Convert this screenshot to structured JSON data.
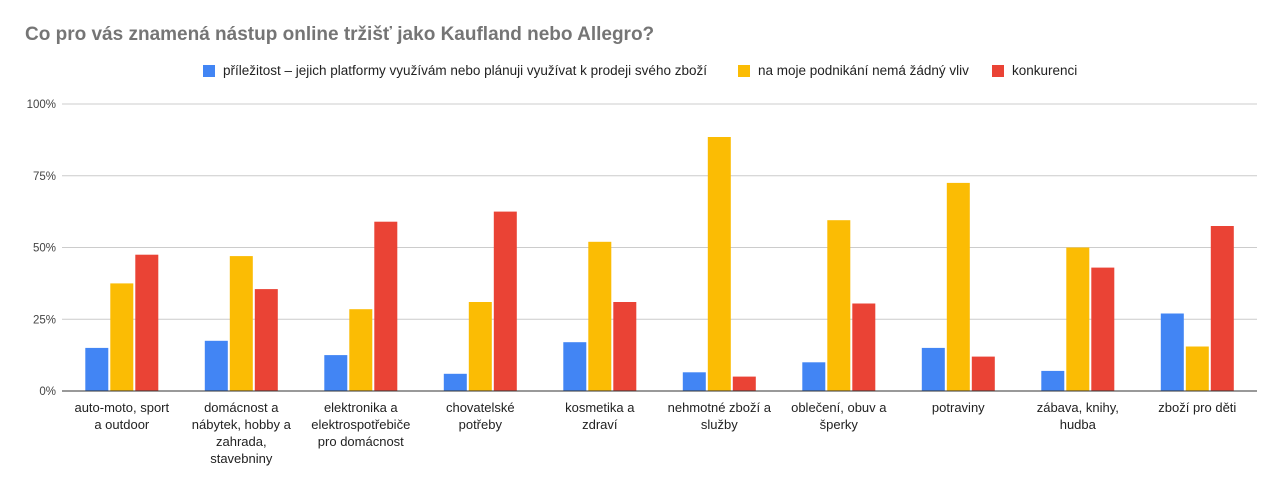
{
  "chart_data": {
    "type": "bar",
    "title": "Co pro vás znamená nástup online tržišť jako Kaufland nebo Allegro?",
    "xlabel": "",
    "ylabel": "",
    "ylim": [
      0,
      100
    ],
    "yticks": [
      "0%",
      "25%",
      "50%",
      "75%",
      "100%"
    ],
    "ytick_values": [
      0,
      25,
      50,
      75,
      100
    ],
    "grid": true,
    "legend_position": "top",
    "categories": [
      [
        "auto-moto, sport",
        "a outdoor"
      ],
      [
        "domácnost a",
        "nábytek, hobby a",
        "zahrada,",
        "stavebniny"
      ],
      [
        "elektronika a",
        "elektrospotřebiče",
        "pro domácnost"
      ],
      [
        "chovatelské",
        "potřeby"
      ],
      [
        "kosmetika a",
        "zdraví"
      ],
      [
        "nehmotné zboží a",
        "služby"
      ],
      [
        "oblečení, obuv a",
        "šperky"
      ],
      [
        "potraviny"
      ],
      [
        "zábava, knihy,",
        "hudba"
      ],
      [
        "zboží pro děti"
      ]
    ],
    "series": [
      {
        "name": "příležitost – jejich platformy využívám nebo plánuji využívat k prodeji svého zboží",
        "color": "#4285F4",
        "values": [
          15,
          17.5,
          12.5,
          6,
          17,
          6.5,
          10,
          15,
          7,
          27
        ]
      },
      {
        "name": "na moje podnikání nemá žádný vliv",
        "color": "#FBBC04",
        "values": [
          37.5,
          47,
          28.5,
          31,
          52,
          88.5,
          59.5,
          72.5,
          50,
          15.5
        ]
      },
      {
        "name": "konkurenci",
        "color": "#EA4335",
        "values": [
          47.5,
          35.5,
          59,
          62.5,
          31,
          5,
          30.5,
          12,
          43,
          57.5
        ]
      }
    ]
  }
}
